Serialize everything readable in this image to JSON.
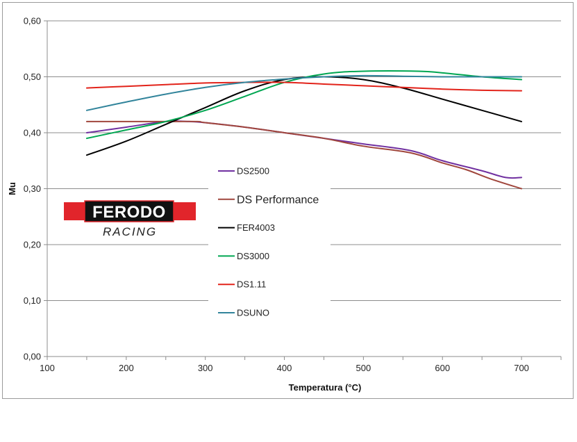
{
  "brand": {
    "name": "FERODO",
    "tagline": "RACING",
    "red": "#e1252b",
    "black": "#111111"
  },
  "chart_data": {
    "type": "line",
    "xlabel": "Temperatura (°C)",
    "ylabel": "Mu",
    "xlim": [
      100,
      750
    ],
    "ylim": [
      0,
      0.6
    ],
    "xticks": [
      100,
      200,
      300,
      400,
      500,
      600,
      700
    ],
    "xtick_labels": [
      "100",
      "200",
      "300",
      "400",
      "500",
      "600",
      "700"
    ],
    "yticks": [
      0,
      0.1,
      0.2,
      0.3,
      0.4,
      0.5,
      0.6
    ],
    "ytick_labels": [
      "0,00",
      "0,10",
      "0,20",
      "0,30",
      "0,40",
      "0,50",
      "0,60"
    ],
    "grid": "horizontal",
    "legend_position": "center-left",
    "series": [
      {
        "name": "DS2500",
        "color": "#7030a0",
        "x": [
          150,
          200,
          250,
          280,
          300,
          350,
          400,
          450,
          500,
          560,
          600,
          650,
          680,
          700
        ],
        "y": [
          0.4,
          0.41,
          0.42,
          0.42,
          0.418,
          0.41,
          0.4,
          0.39,
          0.38,
          0.368,
          0.35,
          0.332,
          0.32,
          0.32
        ]
      },
      {
        "name": "DS Performance",
        "color": "#a0463c",
        "x": [
          150,
          200,
          250,
          290,
          300,
          350,
          400,
          450,
          500,
          560,
          600,
          630,
          660,
          700
        ],
        "y": [
          0.42,
          0.42,
          0.42,
          0.42,
          0.418,
          0.41,
          0.4,
          0.39,
          0.376,
          0.364,
          0.346,
          0.334,
          0.318,
          0.3
        ]
      },
      {
        "name": "FER4003",
        "color": "#000000",
        "x": [
          150,
          200,
          250,
          300,
          350,
          400,
          450,
          500,
          550,
          600,
          650,
          700
        ],
        "y": [
          0.36,
          0.385,
          0.415,
          0.445,
          0.475,
          0.495,
          0.5,
          0.495,
          0.48,
          0.46,
          0.44,
          0.42
        ]
      },
      {
        "name": "DS3000",
        "color": "#00a651",
        "x": [
          150,
          200,
          250,
          300,
          350,
          400,
          450,
          500,
          570,
          600,
          650,
          700
        ],
        "y": [
          0.39,
          0.405,
          0.42,
          0.44,
          0.465,
          0.49,
          0.505,
          0.51,
          0.51,
          0.507,
          0.5,
          0.495
        ]
      },
      {
        "name": "DS1.11",
        "color": "#e2231a",
        "x": [
          150,
          200,
          250,
          300,
          350,
          400,
          450,
          500,
          550,
          600,
          650,
          700
        ],
        "y": [
          0.48,
          0.483,
          0.486,
          0.489,
          0.49,
          0.49,
          0.487,
          0.484,
          0.481,
          0.478,
          0.476,
          0.475
        ]
      },
      {
        "name": "DSUNO",
        "color": "#31849b",
        "x": [
          150,
          200,
          250,
          300,
          350,
          400,
          450,
          500,
          550,
          600,
          650,
          700
        ],
        "y": [
          0.44,
          0.455,
          0.469,
          0.481,
          0.49,
          0.496,
          0.5,
          0.502,
          0.501,
          0.5,
          0.5,
          0.5
        ]
      }
    ]
  }
}
